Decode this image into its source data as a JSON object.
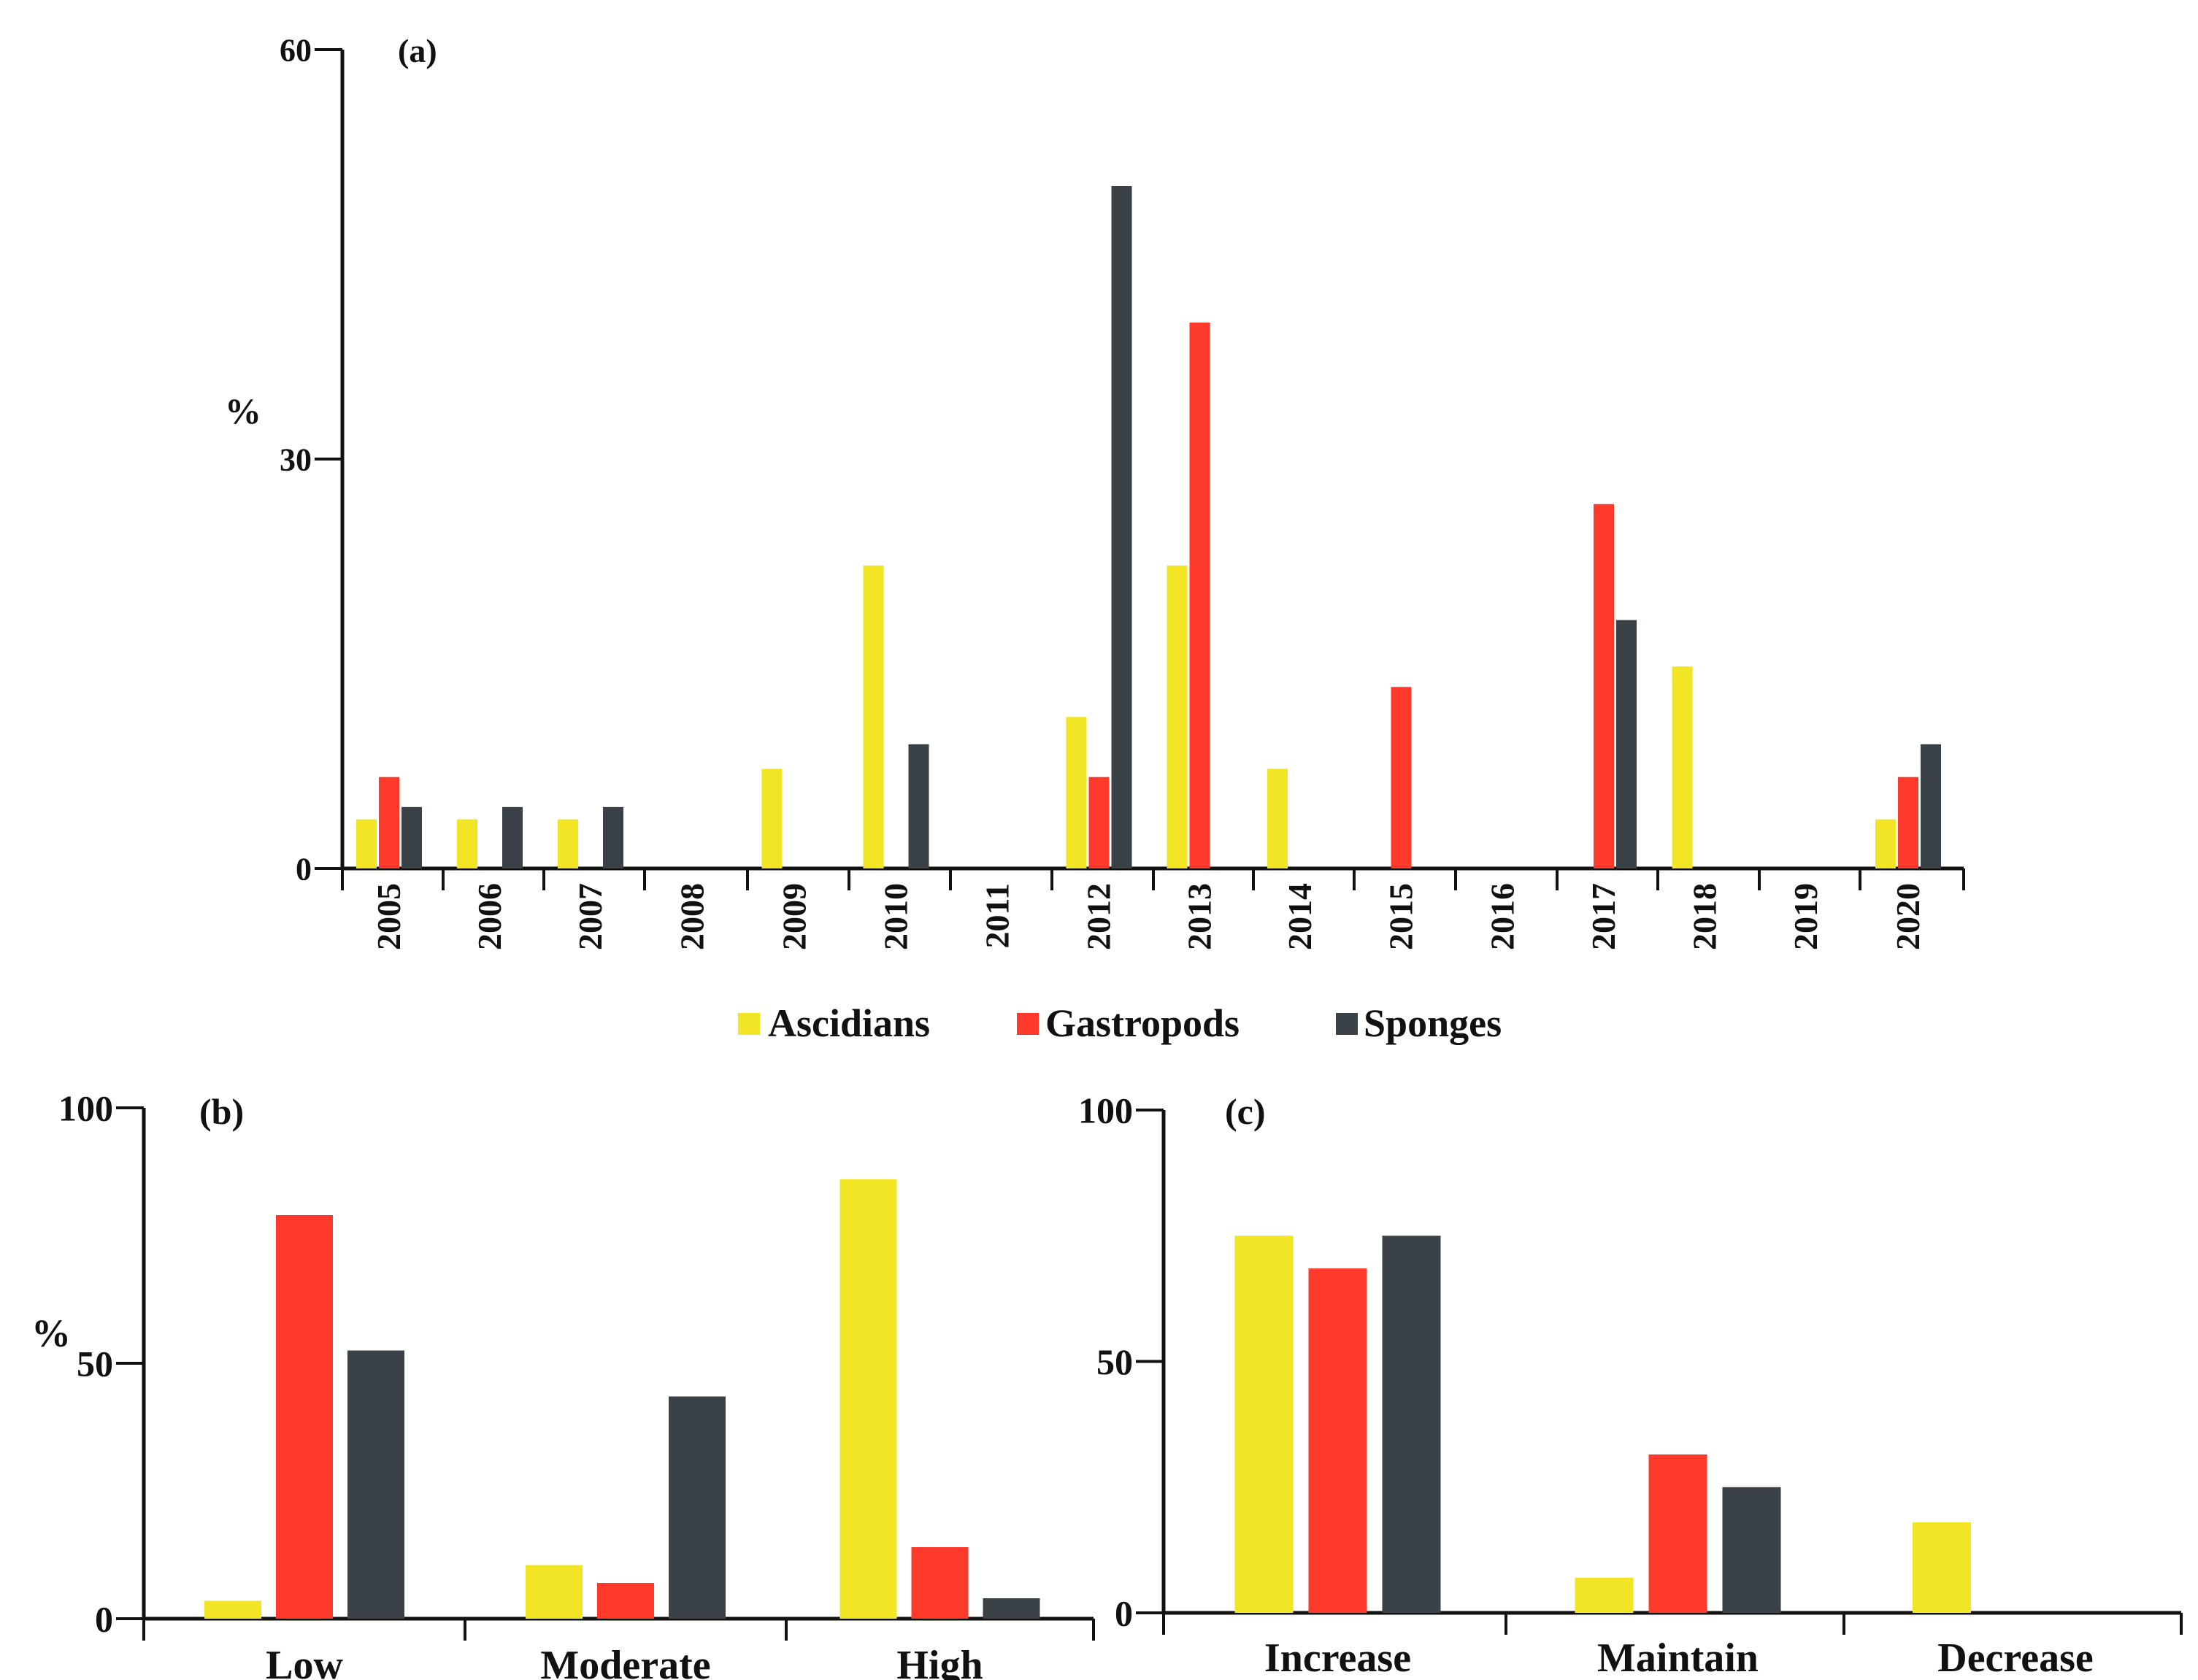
{
  "colors": {
    "Ascidians": "#f1e526",
    "Gastropods": "#fd392c",
    "Sponges": "#3b4247"
  },
  "legend": [
    "Ascidians",
    "Gastropods",
    "Sponges"
  ],
  "chart_data": [
    {
      "panel": "(a)",
      "type": "bar",
      "ylabel": "%",
      "ylim": [
        0,
        60
      ],
      "yticks": [
        "0",
        "30",
        "60"
      ],
      "categories": [
        "2005",
        "2006",
        "2007",
        "2008",
        "2009",
        "2010",
        "2011",
        "2012",
        "2013",
        "2014",
        "2015",
        "2016",
        "2017",
        "2018",
        "2019",
        "2020"
      ],
      "series": [
        {
          "name": "Ascidians",
          "values": [
            3.6,
            3.6,
            3.6,
            0,
            7.3,
            22.2,
            0,
            11.1,
            22.2,
            7.3,
            0,
            0,
            0,
            14.8,
            0,
            3.6
          ]
        },
        {
          "name": "Gastropods",
          "values": [
            6.7,
            0,
            0,
            0,
            0,
            0,
            0,
            6.7,
            40.0,
            0,
            13.3,
            0,
            26.7,
            0,
            0,
            6.7
          ]
        },
        {
          "name": "Sponges",
          "values": [
            4.5,
            4.5,
            4.5,
            0,
            0,
            9.1,
            0,
            50.0,
            0,
            0,
            0,
            0,
            18.2,
            0,
            0,
            9.1
          ]
        }
      ]
    },
    {
      "panel": "(b)",
      "type": "bar",
      "ylabel": "%",
      "ylim": [
        0,
        100
      ],
      "yticks": [
        "0",
        "50",
        "100"
      ],
      "categories": [
        "Low",
        "Moderate",
        "High"
      ],
      "series": [
        {
          "name": "Ascidians",
          "values": [
            3.5,
            10.5,
            86.0
          ]
        },
        {
          "name": "Gastropods",
          "values": [
            79.0,
            7.0,
            14.0
          ]
        },
        {
          "name": "Sponges",
          "values": [
            52.5,
            43.5,
            4.0
          ]
        }
      ]
    },
    {
      "panel": "(c)",
      "type": "bar",
      "ylabel": "",
      "ylim": [
        0,
        100
      ],
      "yticks": [
        "0",
        "50",
        "100"
      ],
      "categories": [
        "Increase",
        "Maintain",
        "Decrease"
      ],
      "series": [
        {
          "name": "Ascidians",
          "values": [
            75.0,
            7.0,
            18.0
          ]
        },
        {
          "name": "Gastropods",
          "values": [
            68.5,
            31.5,
            0
          ]
        },
        {
          "name": "Sponges",
          "values": [
            75.0,
            25.0,
            0
          ]
        }
      ]
    }
  ]
}
